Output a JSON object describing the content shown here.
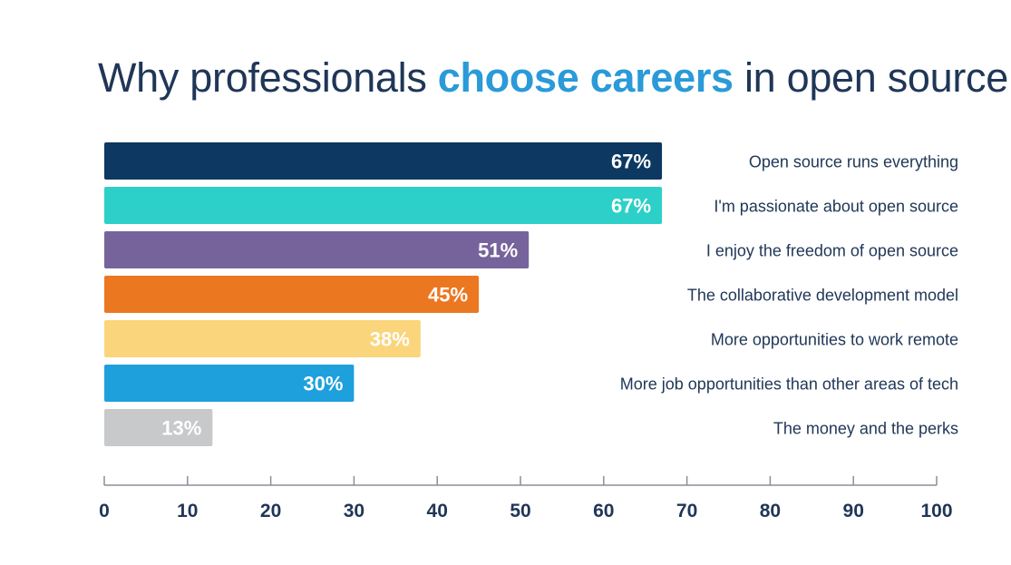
{
  "title": {
    "prefix": "Why professionals ",
    "highlight": "choose careers",
    "suffix": " in open source"
  },
  "chart_data": {
    "type": "bar",
    "orientation": "horizontal",
    "title": "Why professionals choose careers in open source",
    "categories": [
      "Open source runs everything",
      "I'm passionate about open source",
      "I enjoy the freedom of open source",
      "The collaborative development model",
      "More opportunities to work remote",
      "More job opportunities than other areas of tech",
      "The money and the perks"
    ],
    "values": [
      67,
      67,
      51,
      45,
      38,
      30,
      13
    ],
    "value_labels": [
      "67%",
      "67%",
      "51%",
      "45%",
      "38%",
      "30%",
      "13%"
    ],
    "colors": [
      "#0c3861",
      "#2dd0c8",
      "#76639b",
      "#ec7721",
      "#fbd57c",
      "#1ea0dd",
      "#c8c9cb"
    ],
    "xlim": [
      0,
      100
    ],
    "xticks": [
      0,
      10,
      20,
      30,
      40,
      50,
      60,
      70,
      80,
      90,
      100
    ],
    "grid": false,
    "legend": "none"
  }
}
